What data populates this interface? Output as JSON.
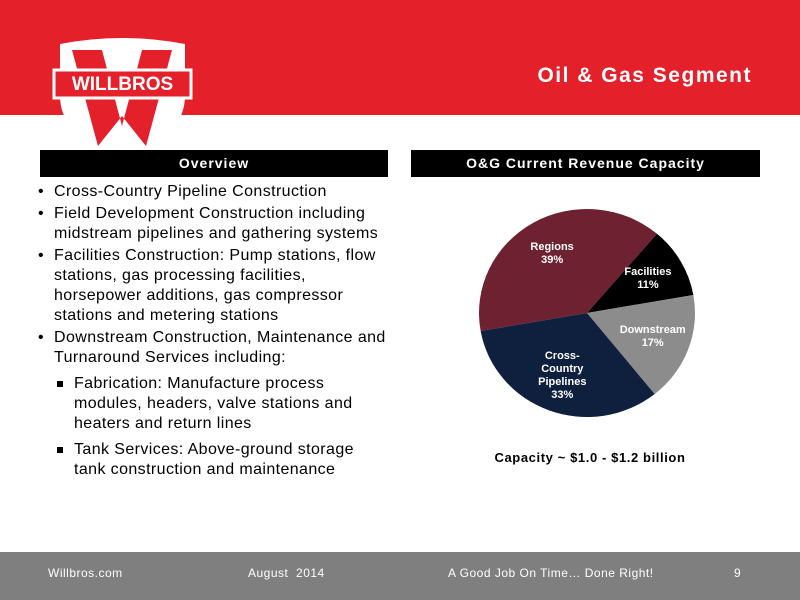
{
  "header": {
    "logo": "WILLBROS",
    "title": "Oil & Gas Segment"
  },
  "left": {
    "heading": "Overview",
    "bullets": [
      {
        "text": "Cross-Country Pipeline Construction"
      },
      {
        "text": "Field Development Construction including midstream pipelines and gathering systems"
      },
      {
        "text": "Facilities Construction: Pump stations, flow stations, gas processing facilities, horsepower additions, gas compressor stations and metering stations"
      },
      {
        "text": "Downstream Construction, Maintenance and Turnaround Services including:",
        "subitems": [
          "Fabrication: Manufacture process modules, headers, valve stations and heaters and return lines",
          "Tank Services: Above-ground storage tank construction and maintenance"
        ]
      }
    ]
  },
  "right": {
    "heading": "O&G Current Revenue Capacity"
  },
  "chart_data": {
    "type": "pie",
    "categories": [
      "Regions",
      "Facilities",
      "Downstream",
      "Cross-Country Pipelines"
    ],
    "values": [
      39,
      11,
      17,
      33
    ],
    "value_labels": [
      "39%",
      "11%",
      "17%",
      "33%"
    ],
    "colors": [
      "#6e2130",
      "#000000",
      "#8c8c8c",
      "#0f1f3e"
    ],
    "caption": "Capacity ~ $1.0 - $1.2 billion"
  },
  "footer": {
    "site": "Willbros.com",
    "date": "August  2014",
    "slogan": "A Good Job On Time… Done Right!",
    "page": "9"
  }
}
